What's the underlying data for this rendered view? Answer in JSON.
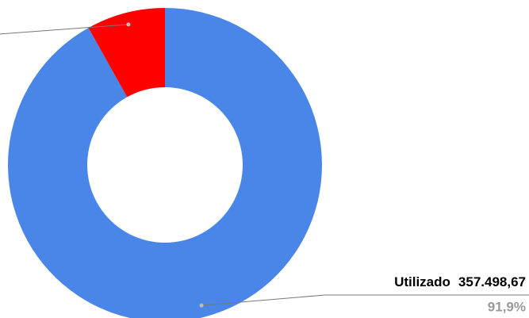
{
  "chart_data": {
    "type": "donut",
    "categories": [
      "Utilizado",
      null
    ],
    "values": [
      91.9,
      8.1
    ],
    "value_labels": [
      "91,9%",
      null
    ],
    "amount_labels": [
      "357.498,67",
      null
    ],
    "colors": [
      "#4a86e8",
      "#ff0000"
    ]
  }
}
